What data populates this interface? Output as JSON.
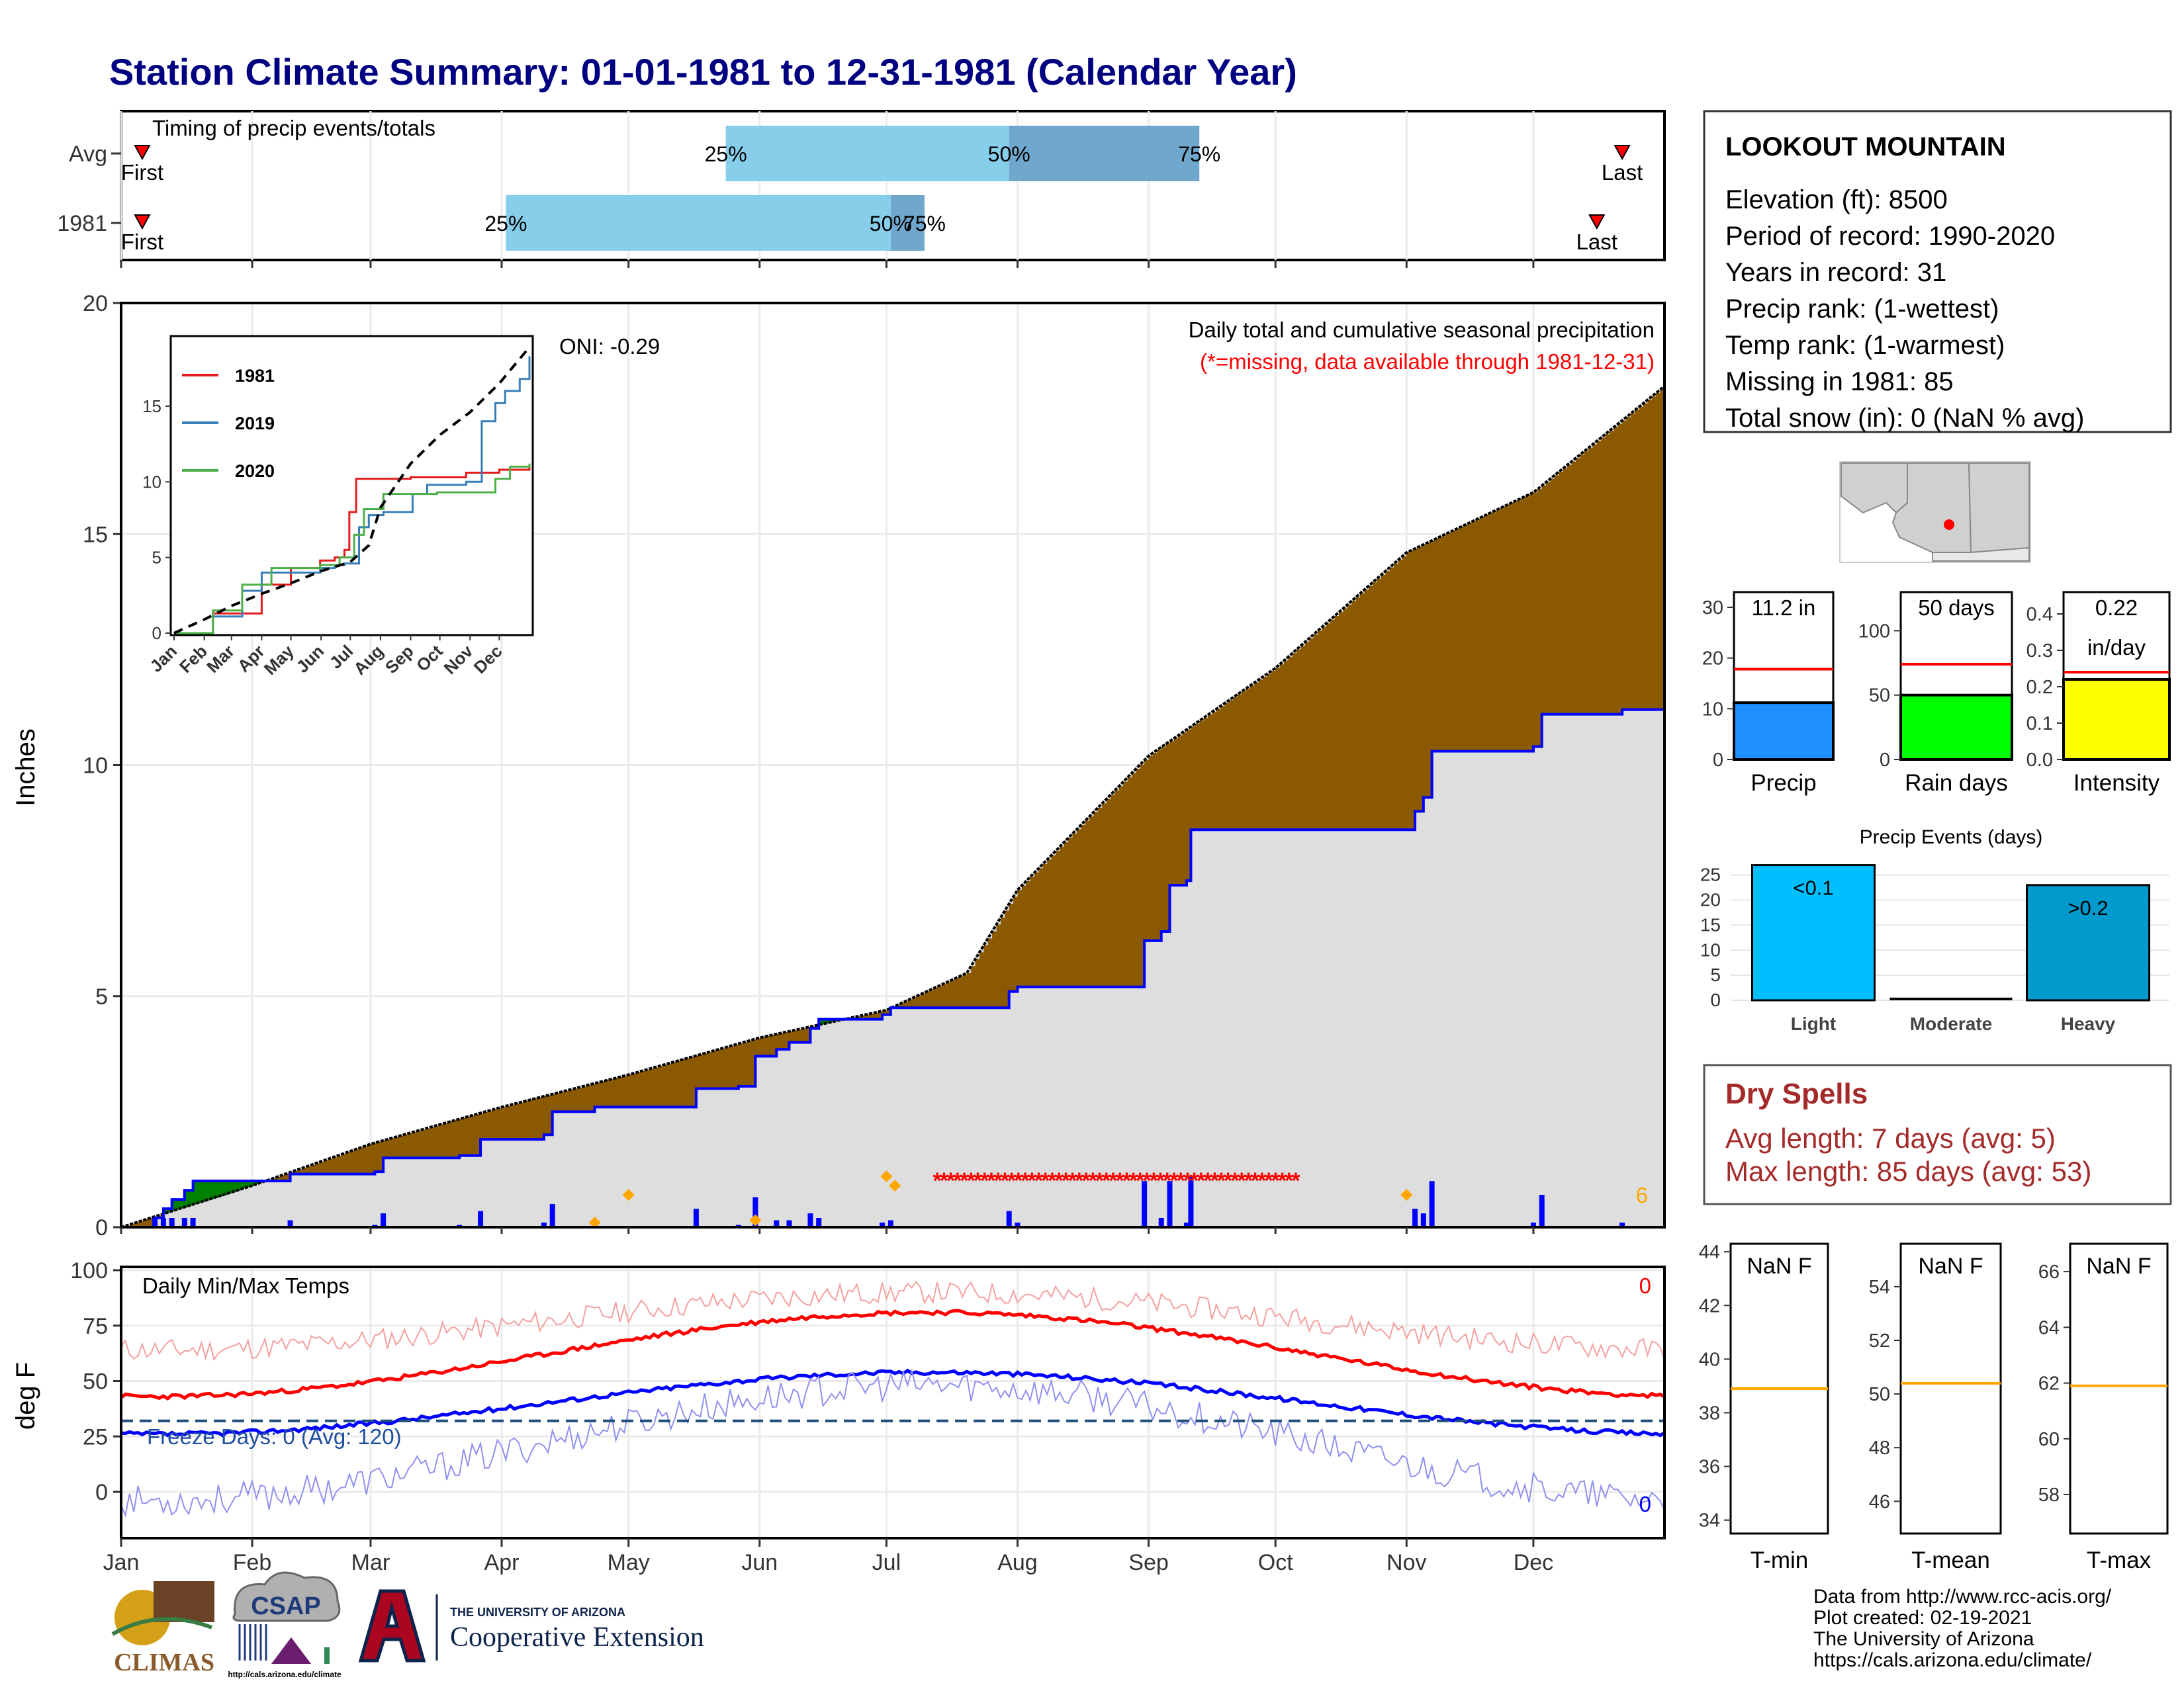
{
  "title": "Station Climate Summary: 01-01-1981 to 12-31-1981 (Calendar Year)",
  "colors": {
    "title": "#000080",
    "brown": "#8B5A00",
    "green": "#008000",
    "blue": "#0000FF",
    "gray": "#DEDEDE",
    "lightblue": "#87CEEB",
    "midblue": "#6FA7CD",
    "red": "#FF0000",
    "orange": "#FFA500",
    "precip_bar": "#1E90FF",
    "rain_bar": "#00FF00",
    "intensity_bar": "#FFFF00",
    "light_bar": "#00BFFF",
    "heavy_bar": "#009ACD",
    "dry": "#A52A2A"
  },
  "timing": {
    "title": "Timing of precip events/totals",
    "rows": [
      {
        "label": "Avg",
        "first": "First",
        "last": "Last",
        "q25": "25%",
        "q50": "50%",
        "q75": "75%",
        "first_doy": 5,
        "q25_doy": 143,
        "q50_doy": 210,
        "q75_doy": 255,
        "last_doy": 355
      },
      {
        "label": "1981",
        "first": "First",
        "last": "Last",
        "q25": "25%",
        "q50": "50%",
        "q75": "75%",
        "first_doy": 5,
        "q25_doy": 91,
        "q50_doy": 182,
        "q75_doy": 190,
        "last_doy": 349
      }
    ]
  },
  "main": {
    "ylabel": "Inches",
    "yticks": [
      0,
      5,
      10,
      15,
      20
    ],
    "ylim": [
      0,
      20
    ],
    "legend_title": "Daily total and cumulative seasonal precipitation",
    "missing_note": "(*=missing, data available through 1981-12-31)",
    "oni": "ONI: -0.29",
    "count_label": "6"
  },
  "inset": {
    "yticks": [
      0,
      5,
      10,
      15
    ],
    "xticks": [
      "Jan",
      "Feb",
      "Mar",
      "Apr",
      "May",
      "Jun",
      "Jul",
      "Aug",
      "Sep",
      "Oct",
      "Nov",
      "Dec"
    ],
    "series": [
      {
        "name": "1981",
        "color": "#E41A1C"
      },
      {
        "name": "2019",
        "color": "#377EB8"
      },
      {
        "name": "2020",
        "color": "#4DAF4A"
      }
    ]
  },
  "temps": {
    "ylabel": "deg F",
    "title": "Daily Min/Max Temps",
    "yticks": [
      0,
      25,
      50,
      75,
      100
    ],
    "freeze": "Freeze Days: 0 (Avg: 120)",
    "count_top": "0",
    "count_bottom": "0"
  },
  "months": [
    "Jan",
    "Feb",
    "Mar",
    "Apr",
    "May",
    "Jun",
    "Jul",
    "Aug",
    "Sep",
    "Oct",
    "Nov",
    "Dec"
  ],
  "station": {
    "name": "LOOKOUT MOUNTAIN",
    "lines": [
      "Elevation (ft): 8500",
      "Period of record: 1990-2020",
      "Years in record: 31",
      "Precip rank:  (1-wettest)",
      "Temp rank:  (1-warmest)",
      "Missing in 1981: 85",
      "Total snow (in): 0 (NaN % avg)"
    ]
  },
  "mini_bars": [
    {
      "label": "Precip",
      "value_label": "11.2 in",
      "value": 11.2,
      "avg": 17.8,
      "yticks": [
        0,
        10,
        20,
        30
      ],
      "ymax": 33,
      "color": "#1E90FF"
    },
    {
      "label": "Rain days",
      "value_label": "50 days",
      "value": 50,
      "avg": 74,
      "yticks": [
        0,
        50,
        100
      ],
      "ymax": 130,
      "color": "#00FF00"
    },
    {
      "label": "Intensity",
      "value_label": "0.22",
      "value_label2": "in/day",
      "value": 0.22,
      "avg": 0.24,
      "yticks": [
        "0.0",
        "0.1",
        "0.2",
        "0.3",
        "0.4"
      ],
      "ymax": 0.46,
      "color": "#FFFF00"
    }
  ],
  "events": {
    "title": "Precip Events (days)",
    "yticks": [
      0,
      5,
      10,
      15,
      20,
      25
    ],
    "bars": [
      {
        "label": "Light",
        "value": 27,
        "tag": "<0.1",
        "color": "#00BFFF"
      },
      {
        "label": "Moderate",
        "value": 0,
        "tag": "",
        "color": "#00BFFF"
      },
      {
        "label": "Heavy",
        "value": 23,
        "tag": ">0.2",
        "color": "#009ACD"
      }
    ]
  },
  "dry": {
    "title": "Dry Spells",
    "avg_line": "Avg length: 7 days (avg: 5)",
    "max_line": "Max length: 85 days (avg: 53)"
  },
  "temp_boxes": [
    {
      "label": "T-min",
      "value_label": "NaN F",
      "yticks": [
        34,
        36,
        38,
        40,
        42,
        44
      ],
      "ymin": 33.5,
      "ymax": 44.3,
      "avg": 38.9
    },
    {
      "label": "T-mean",
      "value_label": "NaN F",
      "yticks": [
        46,
        48,
        50,
        52,
        54
      ],
      "ymin": 44.8,
      "ymax": 55.6,
      "avg": 50.4
    },
    {
      "label": "T-max",
      "value_label": "NaN F",
      "yticks": [
        58,
        60,
        62,
        64,
        66
      ],
      "ymin": 56.6,
      "ymax": 67.0,
      "avg": 61.9
    }
  ],
  "footer": {
    "lines": [
      "Data from http://www.rcc-acis.org/",
      "Plot created: 02-19-2021",
      "The University of Arizona",
      "https://cals.arizona.edu/climate/"
    ],
    "climas": "CLIMAS",
    "csap": "CSAP",
    "csap_url": "http://cals.arizona.edu/climate",
    "ua_small": "THE UNIVERSITY OF ARIZONA",
    "ua_big": "Cooperative Extension"
  }
}
